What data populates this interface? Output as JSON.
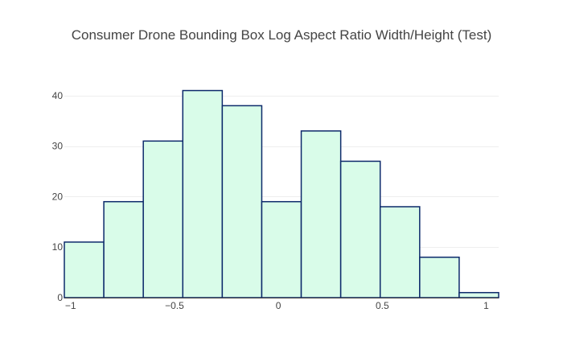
{
  "chart_data": {
    "type": "histogram",
    "title": "Consumer Drone Bounding Box Log Aspect Ratio Width/Height (Test)",
    "xlabel": "",
    "ylabel": "",
    "bins": [
      {
        "start": -1.03,
        "end": -0.84,
        "count": 11
      },
      {
        "start": -0.84,
        "end": -0.65,
        "count": 19
      },
      {
        "start": -0.65,
        "end": -0.46,
        "count": 31
      },
      {
        "start": -0.46,
        "end": -0.27,
        "count": 41
      },
      {
        "start": -0.27,
        "end": -0.08,
        "count": 38
      },
      {
        "start": -0.08,
        "end": 0.11,
        "count": 19
      },
      {
        "start": 0.11,
        "end": 0.3,
        "count": 33
      },
      {
        "start": 0.3,
        "end": 0.49,
        "count": 27
      },
      {
        "start": 0.49,
        "end": 0.68,
        "count": 18
      },
      {
        "start": 0.68,
        "end": 0.87,
        "count": 8
      },
      {
        "start": 0.87,
        "end": 1.06,
        "count": 1
      }
    ],
    "xlim": [
      -1.03,
      1.06
    ],
    "ylim": [
      0,
      43
    ],
    "x_ticks": [
      {
        "value": -1,
        "label": "−1"
      },
      {
        "value": -0.5,
        "label": "−0.5"
      },
      {
        "value": 0,
        "label": "0"
      },
      {
        "value": 0.5,
        "label": "0.5"
      },
      {
        "value": 1,
        "label": "1"
      }
    ],
    "y_ticks": [
      {
        "value": 0,
        "label": "0"
      },
      {
        "value": 10,
        "label": "10"
      },
      {
        "value": 20,
        "label": "20"
      },
      {
        "value": 30,
        "label": "30"
      },
      {
        "value": 40,
        "label": "40"
      }
    ],
    "grid": true,
    "bar_fill": "#d9fce9",
    "bar_stroke": "#0d2a6b",
    "grid_color": "#eeeeee",
    "text_color": "#444444"
  }
}
